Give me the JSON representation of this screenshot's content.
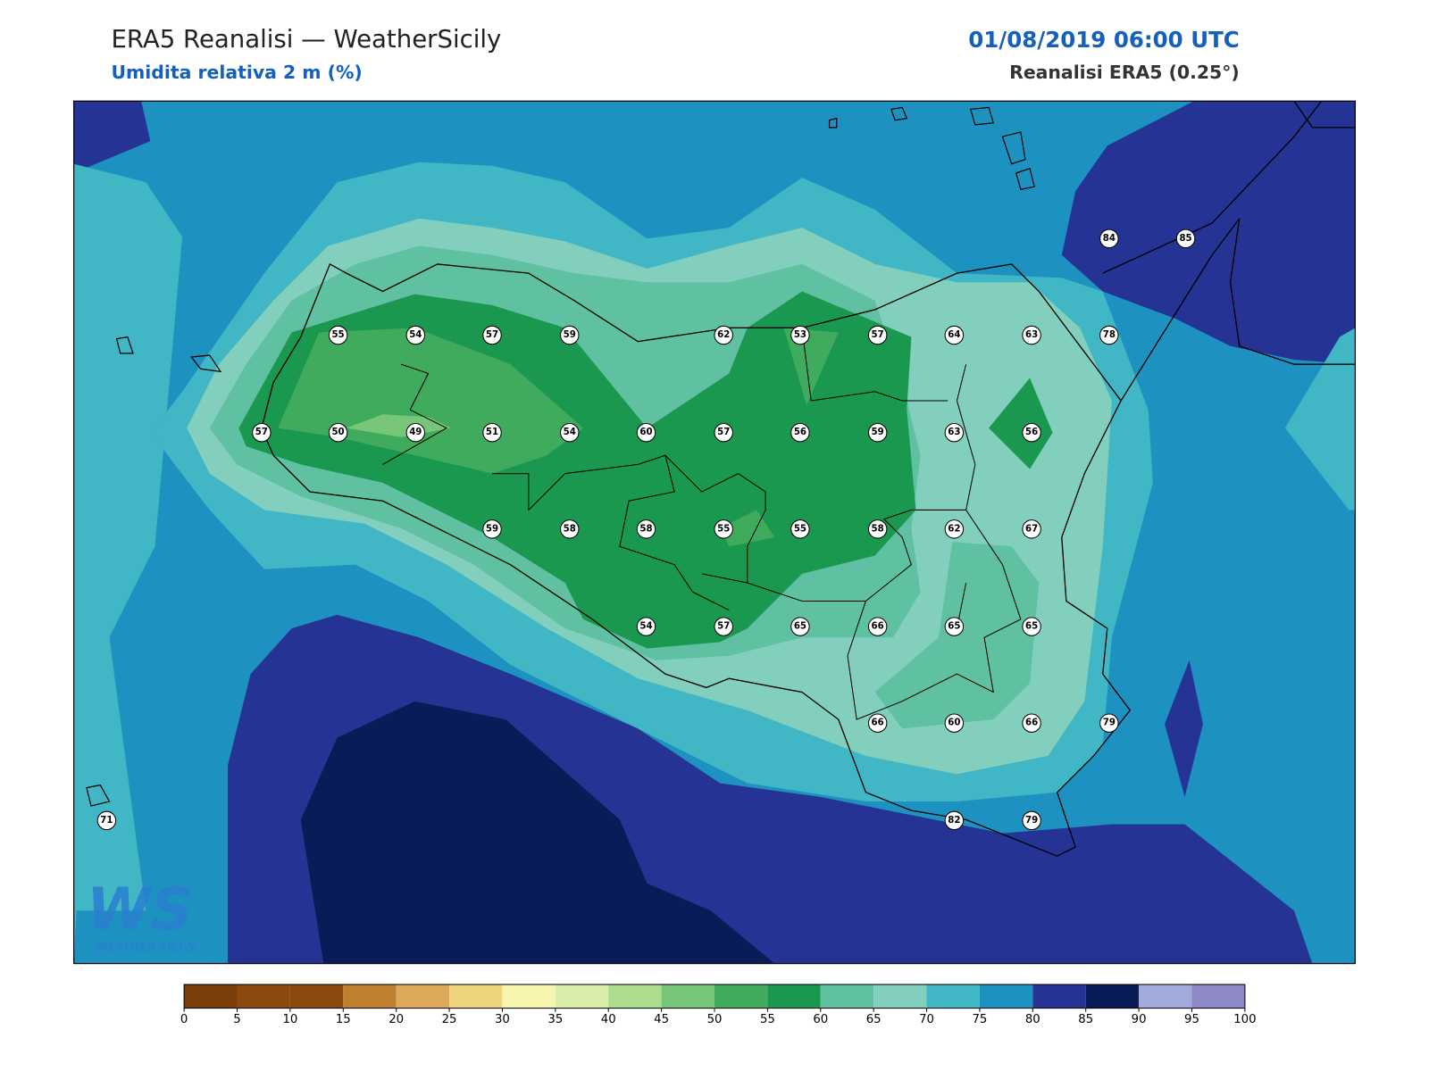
{
  "header": {
    "title": "ERA5 Reanalisi — WeatherSicily",
    "subtitle": "Umidita relativa 2 m (%)",
    "datetime": "01/08/2019 06:00 UTC",
    "source": "Reanalisi ERA5 (0.25°)"
  },
  "stations": {
    "values": [
      84,
      85,
      55,
      54,
      57,
      59,
      62,
      53,
      57,
      64,
      63,
      78,
      57,
      50,
      49,
      51,
      54,
      60,
      57,
      56,
      59,
      63,
      56,
      59,
      58,
      58,
      55,
      55,
      58,
      62,
      67,
      54,
      57,
      65,
      66,
      65,
      65,
      66,
      60,
      66,
      79,
      71,
      82,
      79
    ]
  },
  "colorbar": {
    "ticks": [
      0,
      5,
      10,
      15,
      20,
      25,
      30,
      35,
      40,
      45,
      50,
      55,
      60,
      65,
      70,
      75,
      80,
      85,
      90,
      95,
      100
    ],
    "colors": [
      "#7a3e08",
      "#8c4a0f",
      "#8c4a0f",
      "#c07f2e",
      "#dcaa5a",
      "#efd47e",
      "#f7f5ad",
      "#d9eeaa",
      "#acdc8e",
      "#78c679",
      "#41ab5d",
      "#1b9850",
      "#5fc0a2",
      "#82cfbe",
      "#41b6c4",
      "#1d91c0",
      "#253494",
      "#081d58",
      "#a2a9db",
      "#8d89c6"
    ]
  },
  "logo": {
    "text": "WS",
    "caption": "WEATHER SICILY"
  }
}
